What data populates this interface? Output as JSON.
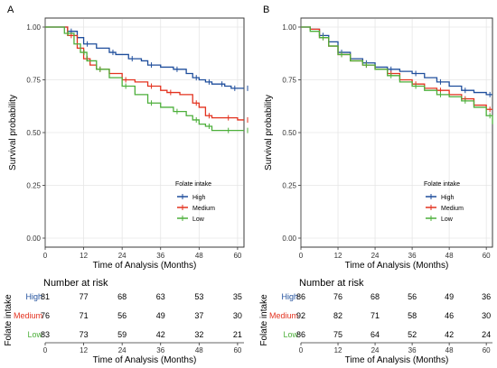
{
  "chart_data": [
    {
      "panel": "A",
      "type": "line",
      "title": "",
      "xlabel": "Time of Analysis (Months)",
      "ylabel": "Survival probability",
      "xticks": [
        "0",
        "12",
        "24",
        "36",
        "48",
        "60"
      ],
      "yticks": [
        "0.00",
        "0.25",
        "0.50",
        "0.75",
        "1.00"
      ],
      "xlim": [
        0,
        62
      ],
      "ylim": [
        0,
        1
      ],
      "legend_title": "Folate intake",
      "legend_position": "bottom-right",
      "series": [
        {
          "name": "High",
          "color": "#1f4e9c",
          "x": [
            0,
            3,
            7,
            10,
            12,
            16,
            20,
            22,
            26,
            30,
            32,
            36,
            40,
            44,
            46,
            48,
            50,
            52,
            54,
            56,
            58,
            60,
            62
          ],
          "y": [
            1.0,
            1.0,
            0.98,
            0.95,
            0.92,
            0.9,
            0.88,
            0.87,
            0.85,
            0.84,
            0.82,
            0.81,
            0.8,
            0.78,
            0.76,
            0.75,
            0.74,
            0.73,
            0.73,
            0.72,
            0.71,
            0.71,
            0.71
          ]
        },
        {
          "name": "Medium",
          "color": "#e3321f",
          "x": [
            0,
            3,
            7,
            10,
            12,
            14,
            16,
            20,
            24,
            28,
            32,
            36,
            38,
            42,
            46,
            48,
            50,
            52,
            56,
            60,
            62
          ],
          "y": [
            1.0,
            1.0,
            0.96,
            0.9,
            0.85,
            0.82,
            0.8,
            0.78,
            0.75,
            0.74,
            0.72,
            0.7,
            0.69,
            0.68,
            0.64,
            0.62,
            0.58,
            0.57,
            0.57,
            0.56,
            0.56
          ]
        },
        {
          "name": "Low",
          "color": "#4caf3a",
          "x": [
            0,
            3,
            6,
            9,
            11,
            13,
            16,
            20,
            24,
            28,
            32,
            36,
            40,
            44,
            46,
            48,
            50,
            52,
            56,
            60,
            62
          ],
          "y": [
            1.0,
            1.0,
            0.97,
            0.92,
            0.88,
            0.84,
            0.8,
            0.76,
            0.72,
            0.68,
            0.64,
            0.62,
            0.6,
            0.58,
            0.56,
            0.54,
            0.53,
            0.51,
            0.51,
            0.51,
            0.51
          ]
        }
      ],
      "risk_table": {
        "title": "Number at risk",
        "ylabel": "Folate intake",
        "xlabel": "Time of Analysis (Months)",
        "times": [
          "0",
          "12",
          "24",
          "36",
          "48",
          "60"
        ],
        "rows": [
          {
            "label": "High",
            "color": "#1f4e9c",
            "values": [
              "81",
              "77",
              "68",
              "63",
              "53",
              "35"
            ]
          },
          {
            "label": "Medium",
            "color": "#e3321f",
            "values": [
              "76",
              "71",
              "56",
              "49",
              "37",
              "30"
            ]
          },
          {
            "label": "Low",
            "color": "#4caf3a",
            "values": [
              "83",
              "73",
              "59",
              "42",
              "32",
              "21"
            ]
          }
        ]
      }
    },
    {
      "panel": "B",
      "type": "line",
      "title": "",
      "xlabel": "Time of Analysis (Months)",
      "ylabel": "Survival probability",
      "xticks": [
        "0",
        "12",
        "24",
        "36",
        "48",
        "60"
      ],
      "yticks": [
        "0.00",
        "0.25",
        "0.50",
        "0.75",
        "1.00"
      ],
      "xlim": [
        0,
        62
      ],
      "ylim": [
        0,
        1
      ],
      "legend_title": "Folate intake",
      "legend_position": "bottom-right",
      "series": [
        {
          "name": "High",
          "color": "#1f4e9c",
          "x": [
            0,
            3,
            6,
            9,
            12,
            16,
            20,
            24,
            28,
            32,
            36,
            40,
            44,
            48,
            52,
            56,
            60,
            62
          ],
          "y": [
            1.0,
            0.99,
            0.96,
            0.93,
            0.88,
            0.85,
            0.83,
            0.81,
            0.8,
            0.79,
            0.78,
            0.76,
            0.74,
            0.72,
            0.7,
            0.69,
            0.68,
            0.68
          ]
        },
        {
          "name": "Medium",
          "color": "#e3321f",
          "x": [
            0,
            3,
            6,
            9,
            12,
            16,
            20,
            24,
            28,
            32,
            36,
            40,
            44,
            48,
            52,
            56,
            60,
            62
          ],
          "y": [
            1.0,
            0.99,
            0.95,
            0.91,
            0.87,
            0.84,
            0.82,
            0.8,
            0.78,
            0.75,
            0.73,
            0.71,
            0.7,
            0.68,
            0.66,
            0.63,
            0.61,
            0.61
          ]
        },
        {
          "name": "Low",
          "color": "#4caf3a",
          "x": [
            0,
            3,
            6,
            9,
            12,
            16,
            20,
            24,
            28,
            32,
            36,
            40,
            44,
            48,
            52,
            56,
            60,
            62
          ],
          "y": [
            1.0,
            0.98,
            0.95,
            0.91,
            0.87,
            0.84,
            0.82,
            0.8,
            0.77,
            0.74,
            0.72,
            0.7,
            0.68,
            0.67,
            0.65,
            0.62,
            0.58,
            0.54
          ]
        }
      ],
      "risk_table": {
        "title": "Number at risk",
        "ylabel": "Folate intake",
        "xlabel": "Time of Analysis (Months)",
        "times": [
          "0",
          "12",
          "24",
          "36",
          "48",
          "60"
        ],
        "rows": [
          {
            "label": "High",
            "color": "#1f4e9c",
            "values": [
              "86",
              "76",
              "68",
              "56",
              "49",
              "36"
            ]
          },
          {
            "label": "Medium",
            "color": "#e3321f",
            "values": [
              "92",
              "82",
              "71",
              "58",
              "46",
              "30"
            ]
          },
          {
            "label": "Low",
            "color": "#4caf3a",
            "values": [
              "86",
              "75",
              "64",
              "52",
              "42",
              "24"
            ]
          }
        ]
      }
    }
  ]
}
